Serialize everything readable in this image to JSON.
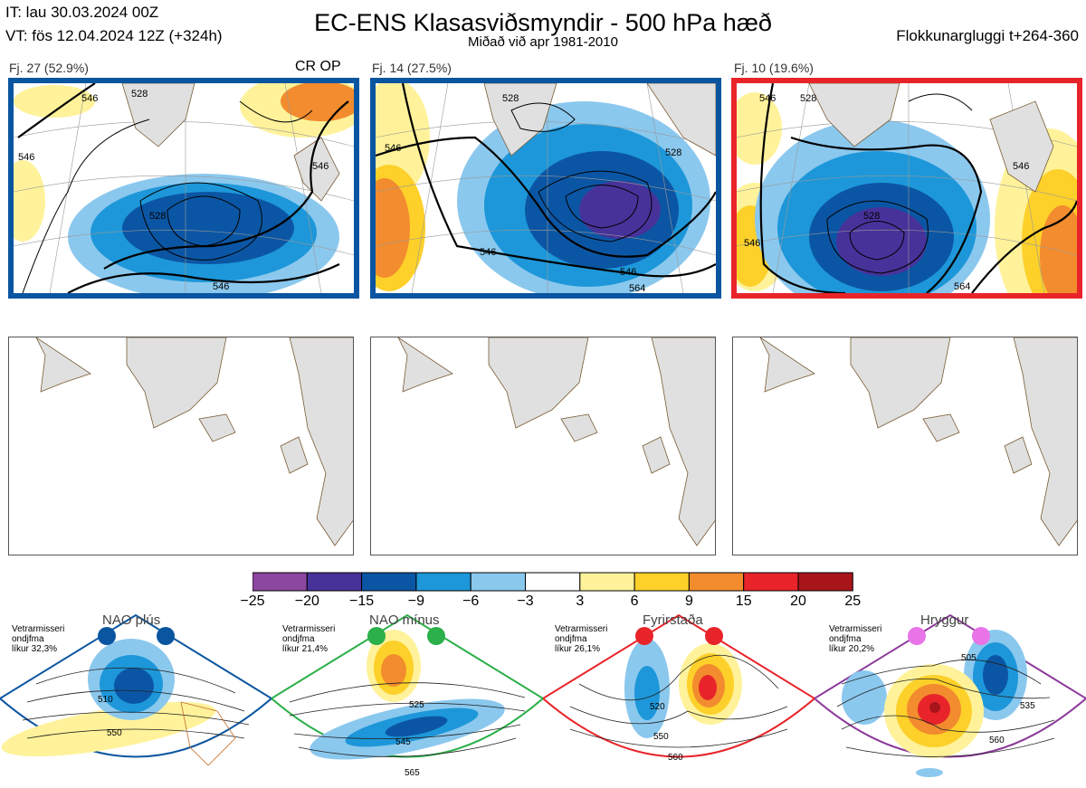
{
  "header": {
    "it": "IT: lau 30.03.2024 00Z",
    "vt": "VT: fös 12.04.2024 12Z  (+324h)",
    "title": "EC-ENS Klasasviðsmyndir - 500 hPa hæð",
    "subtitle": "Miðað við apr 1981-2010",
    "window": "Flokkunargluggi t+264-360"
  },
  "clusters": [
    {
      "label": "Fj. 27 (52.9%)",
      "tag": "CR OP",
      "frame_color": "#0a55a0",
      "contours": [
        "546",
        "528",
        "546",
        "528",
        "546",
        "546"
      ]
    },
    {
      "label": "Fj. 14 (27.5%)",
      "tag": "",
      "frame_color": "#0a55a0",
      "contours": [
        "546",
        "528",
        "528",
        "546",
        "546",
        "564"
      ]
    },
    {
      "label": "Fj. 10 (19.6%)",
      "tag": "",
      "frame_color": "#e8242a",
      "contours": [
        "546",
        "528",
        "546",
        "528",
        "546",
        "564"
      ]
    }
  ],
  "colorbar": {
    "ticks": [
      "−25",
      "−20",
      "−15",
      "−9",
      "−6",
      "−3",
      "3",
      "6",
      "9",
      "15",
      "20",
      "25"
    ],
    "colors": [
      "#8c47a0",
      "#47329a",
      "#0b56a4",
      "#1d97d9",
      "#8bc8ee",
      "#ffffff",
      "#fff29a",
      "#fdd02a",
      "#f28c2e",
      "#e8242a",
      "#a7151b"
    ]
  },
  "regimes": [
    {
      "name": "NAO plús",
      "season": "Vetrarmisseri",
      "freq": "ondjfma",
      "prob": "líkur 32,3%",
      "color": "#0a55a0",
      "labels": [
        "510",
        "550"
      ]
    },
    {
      "name": "NAO mínus",
      "season": "Vetrarmisseri",
      "freq": "ondjfma",
      "prob": "líkur 21,4%",
      "color": "#2bb04a",
      "labels": [
        "525",
        "545",
        "565"
      ]
    },
    {
      "name": "Fyrirstaða",
      "season": "Vetrarmisseri",
      "freq": "ondjfma",
      "prob": "líkur 26,1%",
      "color": "#e8242a",
      "labels": [
        "520",
        "550",
        "560"
      ]
    },
    {
      "name": "Hryggur",
      "season": "Vetrarmisseri",
      "freq": "ondjfma",
      "prob": "líkur 20,2%",
      "color": "#8c3a9a",
      "labels": [
        "505",
        "535",
        "560"
      ]
    }
  ]
}
